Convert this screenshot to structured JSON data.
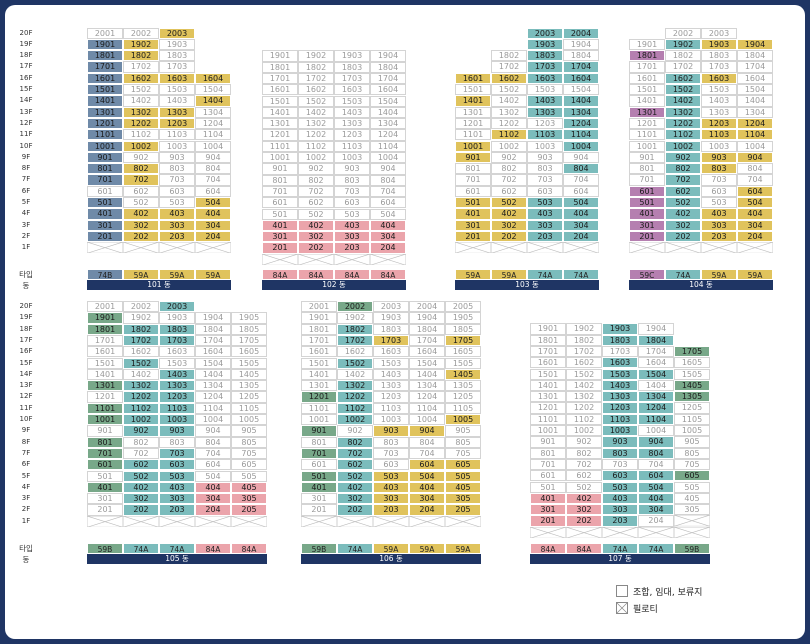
{
  "colors": {
    "b": "#7bbcbc",
    "y": "#e0c35c",
    "r": "#eba4ab",
    "g": "#78a889",
    "d": "#6f8aa8",
    "p": "#b57fb0",
    "w": "#ffffff"
  },
  "labels": {
    "type": "타입",
    "dong": "동"
  },
  "legend": [
    {
      "kind": "plain",
      "text": "조합, 임대, 보류지"
    },
    {
      "kind": "cross",
      "text": "필로티"
    }
  ],
  "buildings": [
    {
      "name": "101 동",
      "cols": 4,
      "types": [
        [
          "74B",
          "d"
        ],
        [
          "59A",
          "y"
        ],
        [
          "59A",
          "y"
        ],
        [
          "59A",
          "y"
        ]
      ],
      "rows": [
        [
          "20",
          "2001:w 2002:w 2003:y"
        ],
        [
          "19",
          "1901:d 1902:y 1903:w"
        ],
        [
          "18",
          "1801:d 1802:y 1803:w"
        ],
        [
          "17",
          "1701:d 1702:w 1703:w"
        ],
        [
          "16",
          "1601:d 1602:y 1603:y 1604:y"
        ],
        [
          "15",
          "1501:d 1502:w 1503:w 1504:w"
        ],
        [
          "14",
          "1401:d 1402:w 1403:w 1404:y"
        ],
        [
          "13",
          "1301:d 1302:y 1303:y 1304:w"
        ],
        [
          "12",
          "1201:d 1202:y 1203:y 1204:w"
        ],
        [
          "11",
          "1101:d 1102:w 1103:w 1104:w"
        ],
        [
          "10",
          "1001:d 1002:y 1003:w 1004:w"
        ],
        [
          "9",
          "901:d 902:w 903:w 904:w"
        ],
        [
          "8",
          "801:d 802:y 803:w 804:w"
        ],
        [
          "7",
          "701:d 702:y 703:w 704:w"
        ],
        [
          "6",
          "601:w 602:w 603:w 604:w"
        ],
        [
          "5",
          "501:d 502:w 503:w 504:y"
        ],
        [
          "4",
          "401:d 402:y 403:y 404:y"
        ],
        [
          "3",
          "301:d 302:y 303:y 304:y"
        ],
        [
          "2",
          "201:d 202:y 203:y 204:y"
        ],
        [
          "1",
          "X X X X"
        ]
      ]
    },
    {
      "name": "102 동",
      "cols": 4,
      "types": [
        [
          "84A",
          "r"
        ],
        [
          "84A",
          "r"
        ],
        [
          "84A",
          "r"
        ],
        [
          "84A",
          "r"
        ]
      ],
      "rows": [
        [
          "19",
          "1901:w 1902:w 1903:w 1904:w"
        ],
        [
          "18",
          "1801:w 1802:w 1803:w 1804:w"
        ],
        [
          "17",
          "1701:w 1702:w 1703:w 1704:w"
        ],
        [
          "16",
          "1601:w 1602:w 1603:w 1604:w"
        ],
        [
          "15",
          "1501:w 1502:w 1503:w 1504:w"
        ],
        [
          "14",
          "1401:w 1402:w 1403:w 1404:w"
        ],
        [
          "13",
          "1301:w 1302:w 1303:w 1304:w"
        ],
        [
          "12",
          "1201:w 1202:w 1203:w 1204:w"
        ],
        [
          "11",
          "1101:w 1102:w 1103:w 1104:w"
        ],
        [
          "10",
          "1001:w 1002:w 1003:w 1004:w"
        ],
        [
          "9",
          "901:w 902:w 903:w 904:w"
        ],
        [
          "8",
          "801:w 802:w 803:w 804:w"
        ],
        [
          "7",
          "701:w 702:w 703:w 704:w"
        ],
        [
          "6",
          "601:w 602:w 603:w 604:w"
        ],
        [
          "5",
          "501:w 502:w 503:w 504:w"
        ],
        [
          "4",
          "401:r 402:r 403:r 404:r"
        ],
        [
          "3",
          "301:r 302:r 303:r 304:r"
        ],
        [
          "2",
          "201:r 202:r 203:r 204:r"
        ],
        [
          "1",
          "X X X X"
        ]
      ]
    },
    {
      "name": "103 동",
      "cols": 4,
      "types": [
        [
          "59A",
          "y"
        ],
        [
          "59A",
          "y"
        ],
        [
          "74A",
          "b"
        ],
        [
          "74A",
          "b"
        ]
      ],
      "rows": [
        [
          "20",
          "_ _ 2003:b 2004:b"
        ],
        [
          "19",
          "_ _ 1903:b 1904:w"
        ],
        [
          "18",
          "_ 1802:w 1803:b 1804:w"
        ],
        [
          "17",
          "_ 1702:w 1703:b 1704:b"
        ],
        [
          "16",
          "1601:y 1602:y 1603:b 1604:b"
        ],
        [
          "15",
          "1501:w 1502:w 1503:w 1504:w"
        ],
        [
          "14",
          "1401:y 1402:w 1403:b 1404:b"
        ],
        [
          "13",
          "1301:w 1302:w 1303:b 1304:b"
        ],
        [
          "12",
          "1201:w 1202:w 1203:w 1204:b"
        ],
        [
          "11",
          "1101:w 1102:y 1103:b 1104:b"
        ],
        [
          "10",
          "1001:y 1002:w 1003:w 1004:b"
        ],
        [
          "9",
          "901:y 902:w 903:w 904:w"
        ],
        [
          "8",
          "801:w 802:w 803:w 804:b"
        ],
        [
          "7",
          "701:w 702:w 703:w 704:w"
        ],
        [
          "6",
          "601:w 602:w 603:w 604:w"
        ],
        [
          "5",
          "501:y 502:y 503:b 504:b"
        ],
        [
          "4",
          "401:y 402:y 403:b 404:b"
        ],
        [
          "3",
          "301:y 302:y 303:b 304:b"
        ],
        [
          "2",
          "201:y 202:y 203:b 204:b"
        ],
        [
          "1",
          "X X X X"
        ]
      ]
    },
    {
      "name": "104 동",
      "cols": 4,
      "types": [
        [
          "59C",
          "p"
        ],
        [
          "74A",
          "b"
        ],
        [
          "59A",
          "y"
        ],
        [
          "59A",
          "y"
        ]
      ],
      "rows": [
        [
          "20",
          "_ 2002:w 2003:w"
        ],
        [
          "19",
          "1901:w 1902:b 1903:y 1904:y"
        ],
        [
          "18",
          "1801:p 1802:w 1803:w 1804:w"
        ],
        [
          "17",
          "1701:w 1702:w 1703:w 1704:w"
        ],
        [
          "16",
          "1601:w 1602:b 1603:y 1604:w"
        ],
        [
          "15",
          "1501:w 1502:b 1503:w 1504:w"
        ],
        [
          "14",
          "1401:w 1402:b 1403:w 1404:w"
        ],
        [
          "13",
          "1301:p 1302:b 1303:w 1304:w"
        ],
        [
          "12",
          "1201:w 1202:b 1203:y 1204:y"
        ],
        [
          "11",
          "1101:w 1102:b 1103:y 1104:y"
        ],
        [
          "10",
          "1001:w 1002:b 1003:w 1004:w"
        ],
        [
          "9",
          "901:w 902:b 903:y 904:y"
        ],
        [
          "8",
          "801:w 802:b 803:y 804:w"
        ],
        [
          "7",
          "701:w 702:b 703:w 704:w"
        ],
        [
          "6",
          "601:p 602:b 603:w 604:y"
        ],
        [
          "5",
          "501:p 502:b 503:w 504:y"
        ],
        [
          "4",
          "401:p 402:b 403:y 404:y"
        ],
        [
          "3",
          "301:p 302:b 303:y 304:y"
        ],
        [
          "2",
          "201:p 202:b 203:y 204:y"
        ],
        [
          "1",
          "X X X X"
        ]
      ]
    },
    {
      "name": "105 동",
      "cols": 5,
      "types": [
        [
          "59B",
          "g"
        ],
        [
          "74A",
          "b"
        ],
        [
          "74A",
          "b"
        ],
        [
          "84A",
          "r"
        ],
        [
          "84A",
          "r"
        ]
      ],
      "rows": [
        [
          "20",
          "2001:w 2002:w 2003:b"
        ],
        [
          "19",
          "1901:g 1902:w 1903:w 1904:w 1905:w"
        ],
        [
          "18",
          "1801:g 1802:b 1803:b 1804:w 1805:w"
        ],
        [
          "17",
          "1701:w 1702:b 1703:b 1704:w 1705:w"
        ],
        [
          "16",
          "1601:w 1602:w 1603:w 1604:w 1605:w"
        ],
        [
          "15",
          "1501:w 1502:b 1503:w 1504:w 1505:w"
        ],
        [
          "14",
          "1401:w 1402:w 1403:b 1404:w 1405:w"
        ],
        [
          "13",
          "1301:g 1302:b 1303:b 1304:w 1305:w"
        ],
        [
          "12",
          "1201:w 1202:b 1203:b 1204:w 1205:w"
        ],
        [
          "11",
          "1101:g 1102:b 1103:b 1104:w 1105:w"
        ],
        [
          "10",
          "1001:g 1002:b 1003:b 1004:w 1005:w"
        ],
        [
          "9",
          "901:w 902:b 903:b 904:w 905:w"
        ],
        [
          "8",
          "801:g 802:w 803:w 804:w 805:w"
        ],
        [
          "7",
          "701:g 702:w 703:b 704:w 705:w"
        ],
        [
          "6",
          "601:g 602:b 603:b 604:w 605:w"
        ],
        [
          "5",
          "501:w 502:b 503:b 504:w 505:w"
        ],
        [
          "4",
          "401:g 402:b 403:b 404:r 405:r"
        ],
        [
          "3",
          "301:w 302:b 303:b 304:r 305:r"
        ],
        [
          "2",
          "201:w 202:b 203:b 204:r 205:r"
        ],
        [
          "1",
          "X X X X X"
        ]
      ]
    },
    {
      "name": "106 동",
      "cols": 5,
      "types": [
        [
          "59B",
          "g"
        ],
        [
          "74A",
          "b"
        ],
        [
          "59A",
          "y"
        ],
        [
          "59A",
          "y"
        ],
        [
          "59A",
          "y"
        ]
      ],
      "rows": [
        [
          "20",
          "2001:w 2002:g 2003:w 2004:w 2005:w"
        ],
        [
          "19",
          "1901:w 1902:w 1903:w 1904:w 1905:w"
        ],
        [
          "18",
          "1801:w 1802:b 1803:w 1804:w 1805:w"
        ],
        [
          "17",
          "1701:w 1702:b 1703:y 1704:w 1705:y"
        ],
        [
          "16",
          "1601:w 1602:w 1603:w 1604:w 1605:w"
        ],
        [
          "15",
          "1501:w 1502:b 1503:w 1504:w 1505:w"
        ],
        [
          "14",
          "1401:w 1402:w 1403:w 1404:w 1405:y"
        ],
        [
          "13",
          "1301:w 1302:b 1303:w 1304:w 1305:w"
        ],
        [
          "12",
          "1201:g 1202:b 1203:w 1204:w 1205:w"
        ],
        [
          "11",
          "1101:w 1102:b 1103:w 1104:w 1105:w"
        ],
        [
          "10",
          "1001:w 1002:b 1003:w 1004:w 1005:y"
        ],
        [
          "9",
          "901:g 902:w 903:y 904:y 905:w"
        ],
        [
          "8",
          "801:w 802:b 803:w 804:w 805:w"
        ],
        [
          "7",
          "701:g 702:b 703:w 704:w 705:w"
        ],
        [
          "6",
          "601:w 602:b 603:w 604:y 605:y"
        ],
        [
          "5",
          "501:g 502:b 503:y 504:y 505:y"
        ],
        [
          "4",
          "401:g 402:b 403:y 404:y 405:y"
        ],
        [
          "3",
          "301:w 302:b 303:y 304:y 305:y"
        ],
        [
          "2",
          "201:w 202:b 203:y 204:y 205:y"
        ],
        [
          "1",
          "X X X X X"
        ]
      ]
    },
    {
      "name": "107 동",
      "cols": 5,
      "types": [
        [
          "84A",
          "r"
        ],
        [
          "84A",
          "r"
        ],
        [
          "74A",
          "b"
        ],
        [
          "74A",
          "b"
        ],
        [
          "59B",
          "g"
        ]
      ],
      "rows": [
        [
          "19",
          "1901:w 1902:w 1903:b 1904:w"
        ],
        [
          "18",
          "1801:w 1802:w 1803:b 1804:b"
        ],
        [
          "17",
          "1701:w 1702:w 1703:w 1704:w 1705:g"
        ],
        [
          "16",
          "1601:w 1602:w 1603:b 1604:w 1605:w"
        ],
        [
          "15",
          "1501:w 1502:w 1503:b 1504:b 1505:w"
        ],
        [
          "14",
          "1401:w 1402:w 1403:b 1404:w 1405:g"
        ],
        [
          "13",
          "1301:w 1302:w 1303:b 1304:b 1305:g"
        ],
        [
          "12",
          "1201:w 1202:w 1203:b 1204:b 1205:w"
        ],
        [
          "11",
          "1101:w 1102:w 1103:b 1104:b 1105:w"
        ],
        [
          "10",
          "1001:w 1002:w 1003:b 1004:w 1005:w"
        ],
        [
          "9",
          "901:w 902:w 903:b 904:b 905:w"
        ],
        [
          "8",
          "801:w 802:w 803:b 804:b 805:w"
        ],
        [
          "7",
          "701:w 702:w 703:w 704:w 705:w"
        ],
        [
          "6",
          "601:w 602:w 603:b 604:b 605:g"
        ],
        [
          "5",
          "501:w 502:w 503:b 504:b 505:w"
        ],
        [
          "4",
          "401:r 402:r 403:b 404:b 405:w"
        ],
        [
          "3",
          "301:r 302:r 303:b 304:b 305:w"
        ],
        [
          "2",
          "201:r 202:r 203:b 204:w X"
        ],
        [
          "1",
          "X X X X X"
        ]
      ]
    }
  ]
}
